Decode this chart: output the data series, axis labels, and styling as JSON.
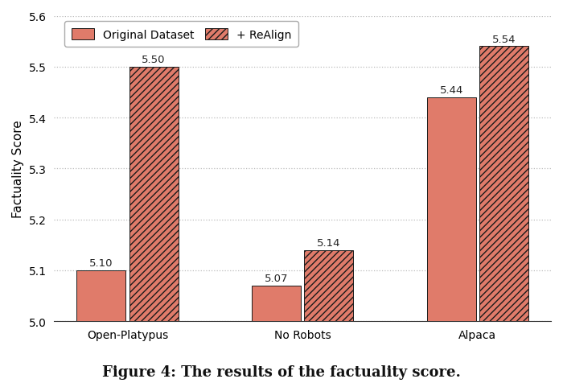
{
  "categories": [
    "Open-Platypus",
    "No Robots",
    "Alpaca"
  ],
  "original_values": [
    5.1,
    5.07,
    5.44
  ],
  "realign_values": [
    5.5,
    5.14,
    5.54
  ],
  "bar_color": "#E07B6A",
  "title": "Figure 4: The results of the factuality score.",
  "ylabel": "Factuality Score",
  "ylim": [
    5.0,
    5.6
  ],
  "yticks": [
    5.0,
    5.1,
    5.2,
    5.3,
    5.4,
    5.5,
    5.6
  ],
  "bar_width": 0.28,
  "group_centers": [
    0.0,
    1.0,
    2.0
  ],
  "legend_labels": [
    "Original Dataset",
    "+ ReAlign"
  ],
  "background_color": "#ffffff",
  "grid_color": "#bbbbbb",
  "label_fontsize": 11,
  "tick_fontsize": 10,
  "title_fontsize": 13,
  "value_fontsize": 9.5
}
